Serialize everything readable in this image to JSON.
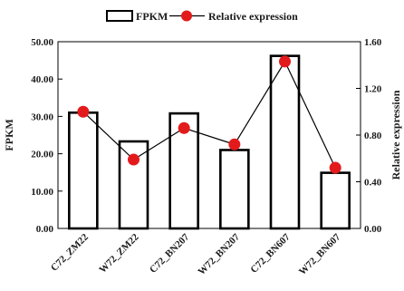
{
  "chart_data": {
    "type": "bar",
    "categories": [
      "C72_ZM22",
      "W72_ZM22",
      "C72_BN207",
      "W72_BN207",
      "C72_BN607",
      "W72_BN607"
    ],
    "series": [
      {
        "name": "FPKM",
        "type": "bar",
        "axis": "left",
        "values": [
          31.0,
          23.3,
          30.8,
          21.0,
          46.2,
          14.9
        ],
        "color": "#000000",
        "fill": "#ffffff"
      },
      {
        "name": "Relative expression",
        "type": "line",
        "axis": "right",
        "values": [
          1.0,
          0.59,
          0.86,
          0.72,
          1.43,
          0.52
        ],
        "errors": [
          0.04,
          0.0,
          0.0,
          0.0,
          0.04,
          0.0
        ],
        "color": "#e31a1c"
      }
    ],
    "left_axis": {
      "label": "FPKM",
      "ylim": [
        0,
        50
      ],
      "ticks": [
        "0.00",
        "10.00",
        "20.00",
        "30.00",
        "40.00",
        "50.00"
      ]
    },
    "right_axis": {
      "label": "Relative expression",
      "ylim": [
        0,
        1.6
      ],
      "ticks": [
        "0.00",
        "0.40",
        "0.80",
        "1.20",
        "1.60"
      ]
    },
    "legend": {
      "placement": "top-center",
      "entries": [
        "FPKM",
        "Relative expression"
      ]
    },
    "grid": false
  }
}
